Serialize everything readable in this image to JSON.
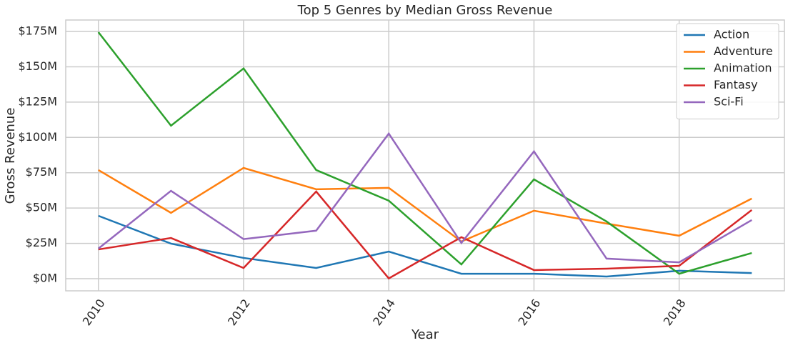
{
  "chart_data": {
    "type": "line",
    "title": "Top 5 Genres by Median Gross Revenue",
    "x_label": "Year",
    "y_label": "Gross Revenue",
    "x": [
      2010,
      2011,
      2012,
      2013,
      2014,
      2015,
      2016,
      2017,
      2018,
      2019
    ],
    "series": [
      {
        "name": "Action",
        "color": "#1f77b4",
        "values": [
          44.5,
          24.8,
          14.7,
          7.6,
          19.2,
          3.5,
          3.5,
          1.5,
          5.6,
          4.0
        ]
      },
      {
        "name": "Adventure",
        "color": "#ff7f0e",
        "values": [
          76.9,
          46.6,
          78.4,
          63.3,
          64.3,
          26.3,
          48.1,
          39.0,
          30.4,
          56.7
        ]
      },
      {
        "name": "Animation",
        "color": "#2ca02c",
        "values": [
          174.5,
          108.3,
          148.8,
          76.9,
          55.2,
          10.1,
          70.3,
          40.5,
          3.5,
          18.2
        ]
      },
      {
        "name": "Fantasy",
        "color": "#d62728",
        "values": [
          20.7,
          28.8,
          7.6,
          61.7,
          0.2,
          29.4,
          6.1,
          7.1,
          9.1,
          48.6
        ]
      },
      {
        "name": "Sci-Fi",
        "color": "#9467bd",
        "values": [
          21.3,
          62.2,
          28.0,
          34.0,
          102.7,
          25.3,
          90.1,
          14.2,
          11.6,
          41.5
        ]
      }
    ],
    "xlim": [
      2009.55,
      2019.45
    ],
    "xticks": [
      2010,
      2012,
      2014,
      2016,
      2018
    ],
    "ylim": [
      -8.6,
      183.1
    ],
    "yticks": [
      {
        "value": 0,
        "label": "$0M"
      },
      {
        "value": 25,
        "label": "$25M"
      },
      {
        "value": 50,
        "label": "$50M"
      },
      {
        "value": 75,
        "label": "$75M"
      },
      {
        "value": 100,
        "label": "$100M"
      },
      {
        "value": 125,
        "label": "$125M"
      },
      {
        "value": 150,
        "label": "$150M"
      },
      {
        "value": 175,
        "label": "$175M"
      }
    ],
    "grid": true,
    "legend": "upper right"
  }
}
